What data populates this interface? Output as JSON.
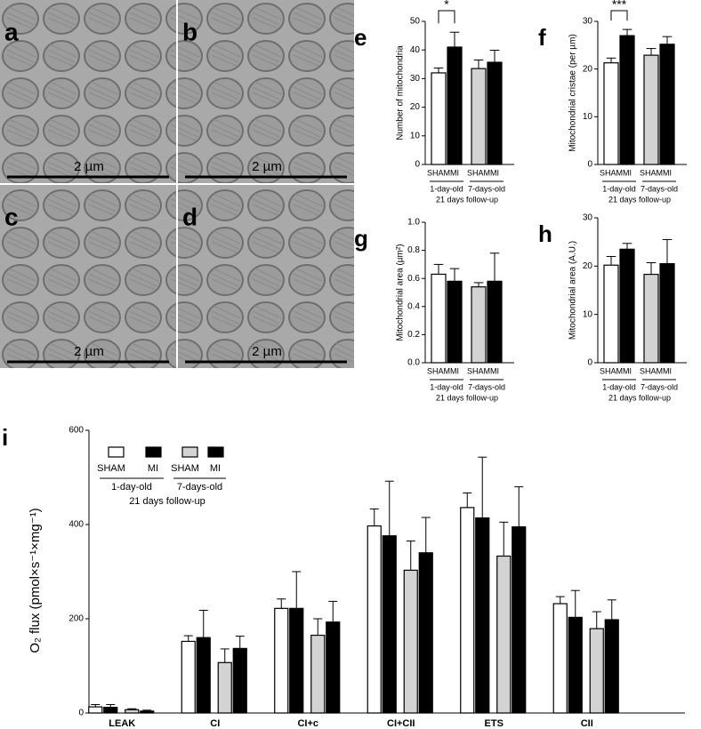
{
  "panels": [
    {
      "label": "a",
      "scale_bar": "2 µm"
    },
    {
      "label": "b",
      "scale_bar": "2 µm"
    },
    {
      "label": "c",
      "scale_bar": "2 µm"
    },
    {
      "label": "d",
      "scale_bar": "2 µm"
    }
  ],
  "chart_data": [
    {
      "type": "bar",
      "panel_label": "e",
      "y_label": "Number of mitochondria",
      "categories": [
        "SHAM",
        "MI",
        "SHAM",
        "MI"
      ],
      "groups": [
        "1-day-old",
        "7-days-old"
      ],
      "footer": "21 days follow-up",
      "colors": [
        "#ffffff",
        "#000000",
        "#d3d3d3",
        "#000000"
      ],
      "values": [
        32,
        41,
        33.5,
        35.7
      ],
      "errors": [
        1.7,
        5.2,
        3,
        4.2
      ],
      "significance": "*",
      "ylim": [
        0,
        50
      ],
      "yticks": [
        0,
        10,
        20,
        30,
        40,
        50
      ]
    },
    {
      "type": "bar",
      "panel_label": "f",
      "y_label": "Mitochondrial cristae (per µm)",
      "categories": [
        "SHAM",
        "MI",
        "SHAM",
        "MI"
      ],
      "groups": [
        "1-day-old",
        "7-days-old"
      ],
      "footer": "21 days follow-up",
      "colors": [
        "#ffffff",
        "#000000",
        "#d3d3d3",
        "#000000"
      ],
      "values": [
        21.3,
        27,
        22.9,
        25.2
      ],
      "errors": [
        1,
        1.3,
        1.4,
        1.6
      ],
      "significance": "***",
      "ylim": [
        0,
        30
      ],
      "yticks": [
        0,
        10,
        20,
        30
      ]
    },
    {
      "type": "bar",
      "panel_label": "g",
      "y_label": "Mitochondrial area (µm²)",
      "categories": [
        "SHAM",
        "MI",
        "SHAM",
        "MI"
      ],
      "groups": [
        "1-day-old",
        "7-days-old"
      ],
      "footer": "21 days follow-up",
      "colors": [
        "#ffffff",
        "#000000",
        "#d3d3d3",
        "#000000"
      ],
      "values": [
        0.63,
        0.58,
        0.54,
        0.58
      ],
      "errors": [
        0.07,
        0.09,
        0.03,
        0.2
      ],
      "ylim": [
        0,
        1
      ],
      "yticks": [
        {
          "value": 0,
          "label": "0.0"
        },
        0.2,
        0.4,
        0.6,
        0.8,
        {
          "value": 1,
          "label": "1.0"
        }
      ]
    },
    {
      "type": "bar",
      "panel_label": "h",
      "y_label": "Mitochondrial area (A.U.)",
      "categories": [
        "SHAM",
        "MI",
        "SHAM",
        "MI"
      ],
      "groups": [
        "1-day-old",
        "7-days-old"
      ],
      "footer": "21 days follow-up",
      "colors": [
        "#ffffff",
        "#000000",
        "#d3d3d3",
        "#000000"
      ],
      "values": [
        20.2,
        23.5,
        18.3,
        20.5
      ],
      "errors": [
        1.8,
        1.2,
        2.4,
        5
      ],
      "ylim": [
        0,
        30
      ],
      "yticks": [
        0,
        10,
        20,
        30
      ]
    },
    {
      "type": "groupedbar",
      "panel_label": "i",
      "y_label": "O₂ flux (pmol×s⁻¹×mg⁻¹)",
      "categories": [
        "LEAK",
        "CI",
        "CI+c",
        "CI+CII",
        "ETS",
        "CII"
      ],
      "groups": [
        "1-day-old",
        "7-days-old"
      ],
      "footer": "21 days follow-up",
      "series": [
        {
          "name": "SHAM",
          "color": "#ffffff",
          "values": [
            13,
            152,
            222,
            397,
            436,
            232
          ],
          "errors": [
            5,
            12,
            20,
            36,
            31,
            15
          ]
        },
        {
          "name": "MI",
          "color": "#000000",
          "values": [
            12,
            160,
            222,
            376,
            414,
            203
          ],
          "errors": [
            6,
            58,
            78,
            116,
            129,
            57
          ]
        },
        {
          "name": "SHAM",
          "color": "#d3d3d3",
          "values": [
            7,
            107,
            165,
            303,
            333,
            179
          ],
          "errors": [
            2,
            29,
            35,
            62,
            72,
            36
          ]
        },
        {
          "name": "MI",
          "color": "#000000",
          "values": [
            4,
            137,
            193,
            340,
            395,
            198
          ],
          "errors": [
            2,
            26,
            44,
            75,
            85,
            42
          ]
        }
      ],
      "ylim": [
        0,
        600
      ],
      "yticks": [
        0,
        200,
        400,
        600
      ]
    }
  ]
}
